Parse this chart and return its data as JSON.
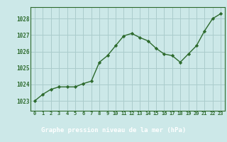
{
  "x": [
    0,
    1,
    2,
    3,
    4,
    5,
    6,
    7,
    8,
    9,
    10,
    11,
    12,
    13,
    14,
    15,
    16,
    17,
    18,
    19,
    20,
    21,
    22,
    23
  ],
  "y": [
    1023.0,
    1023.4,
    1023.7,
    1023.85,
    1023.85,
    1023.85,
    1024.05,
    1024.2,
    1025.35,
    1025.75,
    1026.35,
    1026.95,
    1027.1,
    1026.85,
    1026.65,
    1026.2,
    1025.85,
    1025.75,
    1025.35,
    1025.85,
    1026.35,
    1027.25,
    1028.0,
    1028.3
  ],
  "line_color": "#2d6a2d",
  "marker": "D",
  "marker_size": 2.2,
  "bg_color": "#cce8e8",
  "grid_color": "#aacccc",
  "xlabel": "Graphe pression niveau de la mer (hPa)",
  "xlabel_color": "#2d6a2d",
  "ylabel_ticks": [
    1023,
    1024,
    1025,
    1026,
    1027,
    1028
  ],
  "ylim": [
    1022.4,
    1028.7
  ],
  "xlim": [
    -0.5,
    23.5
  ],
  "xtick_labels": [
    "0",
    "1",
    "2",
    "3",
    "4",
    "5",
    "6",
    "7",
    "8",
    "9",
    "10",
    "11",
    "12",
    "13",
    "14",
    "15",
    "16",
    "17",
    "18",
    "19",
    "20",
    "21",
    "22",
    "23"
  ],
  "tick_color": "#2d6a2d",
  "axis_color": "#2d6a2d",
  "bottom_bar_color": "#4a8a4a",
  "bottom_bar_height": 0.18
}
